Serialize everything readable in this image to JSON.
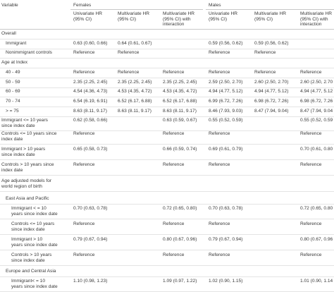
{
  "header": {
    "variable": "Variable",
    "females": "Females",
    "males": "Males",
    "columns": [
      [
        "Univariate HR",
        "(95% CI)"
      ],
      [
        "Multivariate HR",
        "(95% CI)"
      ],
      [
        "Multivariate HR",
        "(95% CI) with",
        "interaction"
      ],
      [
        "Univariate HR",
        "(95% CI)"
      ],
      [
        "Multivariate HR",
        "(95% CI)"
      ],
      [
        "Multivariate HR",
        "(95% CI) with",
        "interaction"
      ]
    ]
  },
  "rows": [
    {
      "label": [
        "Overall"
      ],
      "indent": 0,
      "values": [
        "",
        "",
        "",
        "",
        "",
        ""
      ]
    },
    {
      "label": [
        "Immigrant"
      ],
      "indent": 1,
      "values": [
        "0.63 (0.60, 0.66)",
        "0.64 (0.61, 0.67)",
        "",
        "0.59 (0.56, 0.62)",
        "0.59 (0.56, 0.62)",
        ""
      ]
    },
    {
      "label": [
        "Nonimmigrant controls"
      ],
      "indent": 1,
      "values": [
        "Reference",
        "Reference",
        "",
        "Reference",
        "Reference",
        ""
      ]
    },
    {
      "label": [
        "Age at Index"
      ],
      "indent": 0,
      "values": [
        "",
        "",
        "",
        "",
        "",
        ""
      ]
    },
    {
      "label": [
        "40 - 49"
      ],
      "indent": 1,
      "values": [
        "Reference",
        "Reference",
        "Reference",
        "Reference",
        "Reference",
        "Reference"
      ]
    },
    {
      "label": [
        "50 - 59"
      ],
      "indent": 1,
      "values": [
        "2.35 (2.25, 2.45)",
        "2.35 (2.25, 2.45)",
        "2.35 (2.25, 2.45)",
        "2.59 (2.50, 2.70)",
        "2.60 (2.50, 2.70)",
        "2.60 (2.50, 2.70"
      ]
    },
    {
      "label": [
        "60 - 69"
      ],
      "indent": 1,
      "values": [
        "4.54 (4.36, 4.73)",
        "4.53 (4.35, 4.72)",
        "4.53 (4.35, 4.72)",
        "4.94 (4.77, 5.12)",
        "4.94 (4.77, 5.12)",
        "4.94 (4.77, 5.12"
      ]
    },
    {
      "label": [
        "70 - 74"
      ],
      "indent": 1,
      "values": [
        "6.54 (6.19, 6.91)",
        "6.52 (6.17, 6.88)",
        "6.52 (6.17, 6.88)",
        "6.99 (6.72, 7.26)",
        "6.98 (6.72, 7.26)",
        "6.98 (6.72, 7.26"
      ]
    },
    {
      "label": [
        "> = 75"
      ],
      "indent": 1,
      "values": [
        "8.63 (8.11, 9.17)",
        "8.63 (8.11, 9.17)",
        "8.63 (8.11, 9.17)",
        "8.46 (7.93, 9.03)",
        "8.47 (7.94, 9.04)",
        "8.47 (7.94, 9.04"
      ]
    },
    {
      "label": [
        "Immigrant <= 10 years",
        "since index date"
      ],
      "indent": 0,
      "values": [
        "0.62 (0.58, 0.66)",
        "",
        "0.63 (0.59, 0.67)",
        "0.55 (0.52, 0.59)",
        "",
        "0.55 (0.52, 0.59"
      ]
    },
    {
      "label": [
        "Controls <= 10 years since",
        "index date"
      ],
      "indent": 0,
      "values": [
        "Reference",
        "",
        "Reference",
        "Reference",
        "",
        "Reference"
      ]
    },
    {
      "label": [
        "Immigrant > 10 years",
        "since index date"
      ],
      "indent": 0,
      "values": [
        "0.65 (0.58, 0.73)",
        "",
        "0.66 (0.59, 0.74)",
        "0.69 (0.61, 0.79)",
        "",
        "0.70 (0.61, 0.80"
      ]
    },
    {
      "label": [
        "Controls > 10 years since",
        "index date"
      ],
      "indent": 0,
      "values": [
        "Reference",
        "",
        "Reference",
        "Reference",
        "",
        "Reference"
      ]
    },
    {
      "label": [
        "Age adjusted models for",
        "world region of birth"
      ],
      "indent": 0,
      "values": [
        "",
        "",
        "",
        "",
        "",
        ""
      ]
    },
    {
      "label": [
        "East Asia and Pacific"
      ],
      "indent": 1,
      "values": [
        "",
        "",
        "",
        "",
        "",
        ""
      ]
    },
    {
      "label": [
        "Immigrant < = 10",
        "years since index date"
      ],
      "indent": 2,
      "values": [
        "0.70 (0.63, 0.78)",
        "",
        "0.72 (0.65, 0.80)",
        "0.70 (0.63, 0.78)",
        "",
        "0.72 (0.65, 0.80"
      ]
    },
    {
      "label": [
        "Controls <= 10 years",
        "since index date"
      ],
      "indent": 2,
      "values": [
        "Reference",
        "",
        "Reference",
        "Reference",
        "",
        "Reference"
      ]
    },
    {
      "label": [
        "Immigrant > 10",
        "years since index date"
      ],
      "indent": 2,
      "values": [
        "0.79 (0.67, 0.94)",
        "",
        "0.80 (0.67, 0.96)",
        "0.79 (0.67, 0.94)",
        "",
        "0.80 (0.67, 0.96"
      ]
    },
    {
      "label": [
        "Controls > 10 years",
        "since index date"
      ],
      "indent": 2,
      "values": [
        "Reference",
        "",
        "Reference",
        "Reference",
        "",
        "Reference"
      ]
    },
    {
      "label": [
        "Europe and Central Asia"
      ],
      "indent": 1,
      "values": [
        "",
        "",
        "",
        "",
        "",
        ""
      ]
    },
    {
      "label": [
        "Immigrant< = 10",
        "years since index date"
      ],
      "indent": 2,
      "values": [
        "1.10 (0.98, 1.23)",
        "",
        "1.09 (0.97, 1.22)",
        "1.02 (0.90, 1.15)",
        "",
        "1.01 (0.90, 1.14"
      ]
    }
  ]
}
